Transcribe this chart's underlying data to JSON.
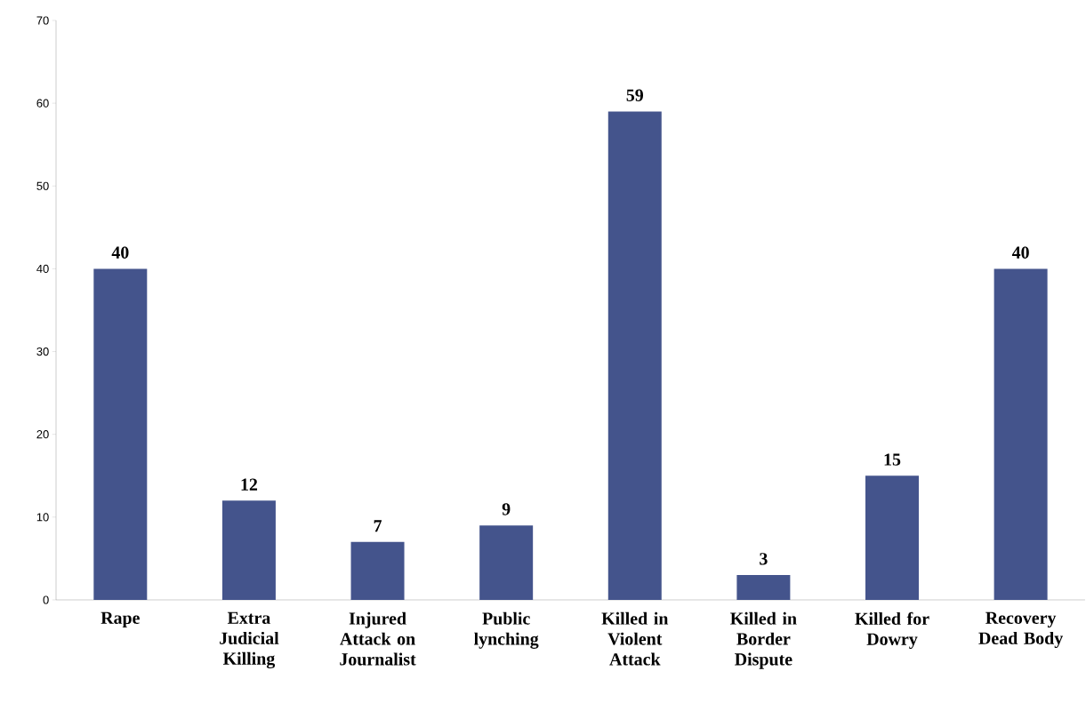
{
  "chart_data": {
    "type": "bar",
    "categories": [
      "Rape",
      "Extra Judicial Killing",
      "Injured Attack on Journalist",
      "Public lynching",
      "Killed in Violent Attack",
      "Killed in Border Dispute",
      "Killed for Dowry",
      "Recovery Dead Body"
    ],
    "values": [
      40,
      12,
      7,
      9,
      59,
      3,
      15,
      40
    ],
    "color": "#44548c",
    "ylim": [
      0,
      70
    ],
    "yticks": [
      0,
      10,
      20,
      30,
      40,
      50,
      60,
      70
    ],
    "data_labels": true,
    "grid": false
  }
}
